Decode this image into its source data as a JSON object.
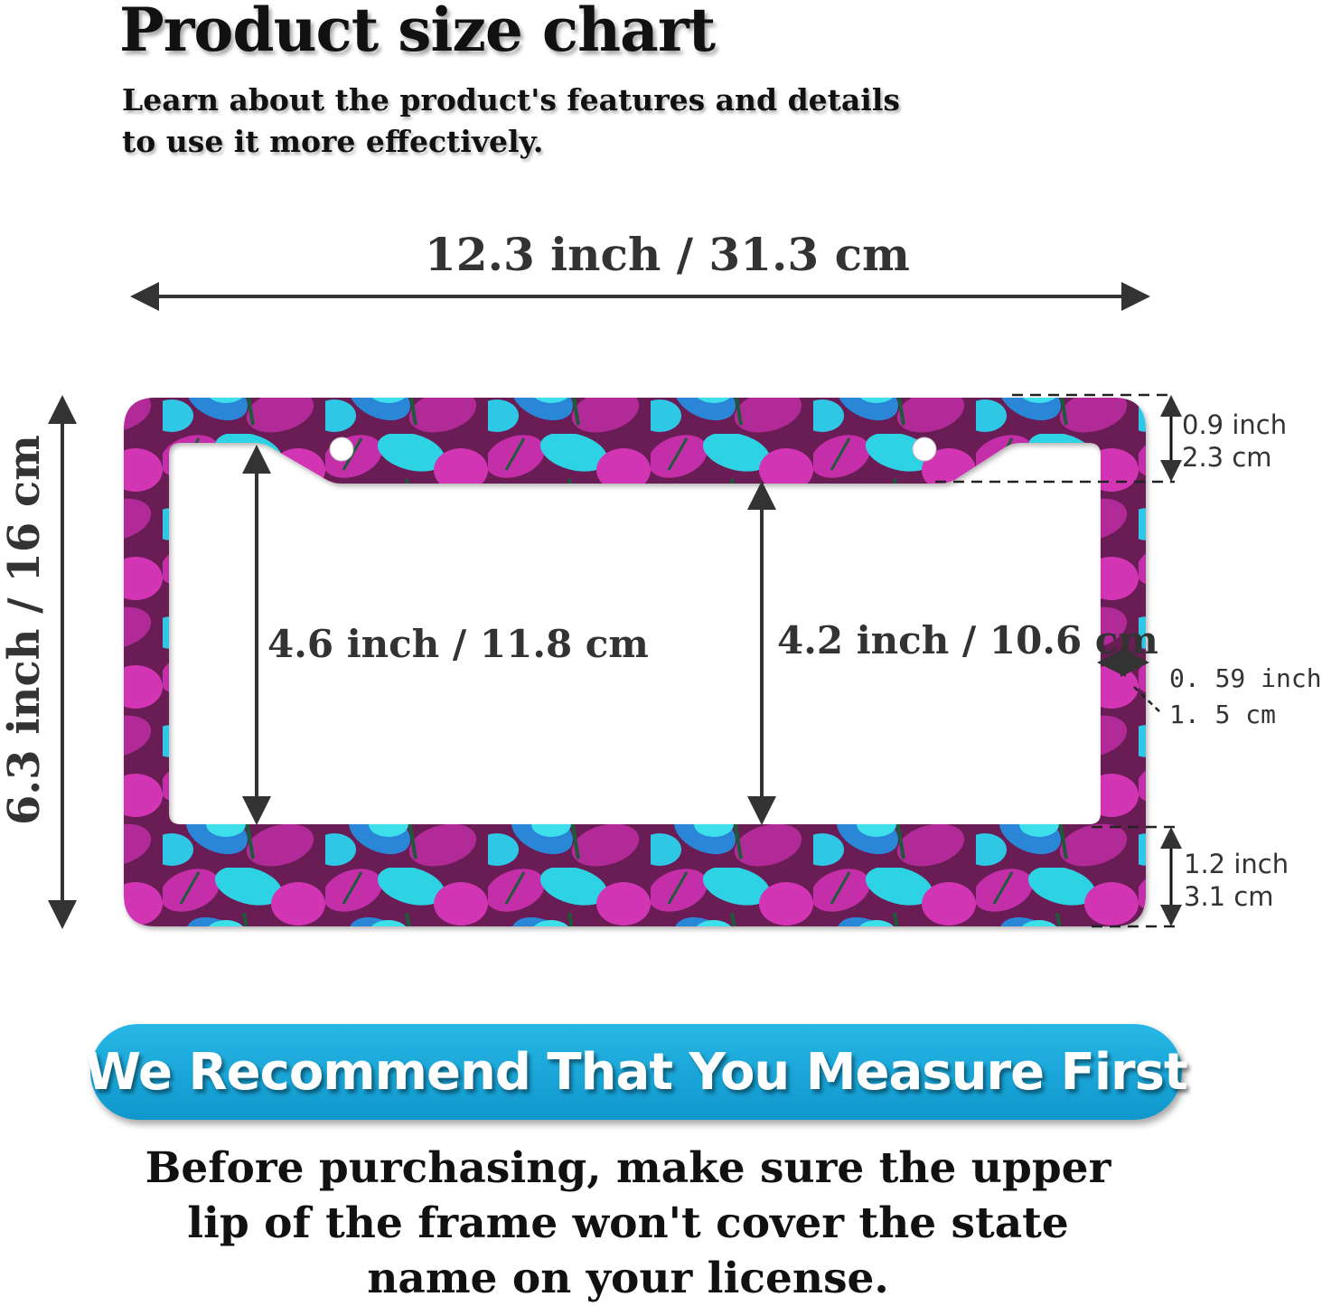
{
  "header": {
    "title": "Product size chart",
    "subtitle_line1": "Learn about the product's features and details",
    "subtitle_line2": "to use it more effectively."
  },
  "dimensions": {
    "width": "12.3 inch / 31.3 cm",
    "height": "6.3 inch / 16 cm",
    "inner_left_height": "4.6 inch / 11.8 cm",
    "inner_right_height": "4.2 inch / 10.6 cm",
    "top_border_inch": "0.9 inch",
    "top_border_cm": "2.3 cm",
    "side_border_inch": "0. 59 inch",
    "side_border_cm": "1. 5 cm",
    "bottom_border_inch": "1.2 inch",
    "bottom_border_cm": "3.1 cm"
  },
  "product": {
    "pattern": "pink and turquoise butterflies",
    "colors": {
      "pink": "#c0309f",
      "turquoise": "#2ad0e0",
      "blue": "#2a7fd0",
      "dark": "#4a1838"
    }
  },
  "banner": {
    "text": "We Recommend That You Measure First",
    "color": "#1aa7d8"
  },
  "note": {
    "line1": "Before purchasing, make sure the upper",
    "line2": "lip of the frame won't cover the state",
    "line3": "name on your license."
  }
}
